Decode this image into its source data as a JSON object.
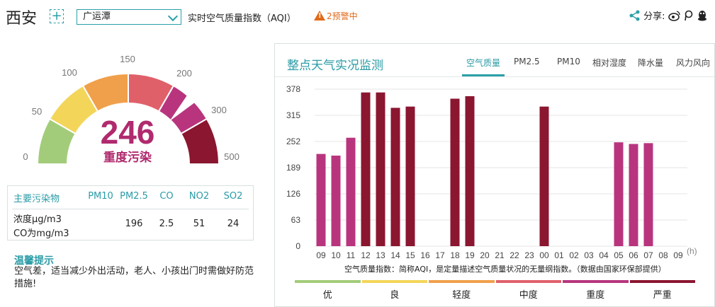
{
  "header": {
    "city": "西安",
    "add_symbol": "+",
    "station": "广运潭",
    "aqi_title": "实时空气质量指数（AQI）",
    "warning_count": "2",
    "warning_text": "预警中",
    "share_label": "分享:"
  },
  "gauge": {
    "aqi_value": "246",
    "level": "重度污染",
    "aqi_numeric": 246,
    "max": 500,
    "ticks": [
      "0",
      "50",
      "100",
      "150",
      "200",
      "300",
      "500"
    ]
  },
  "pollutants": {
    "header_label": "主要污染物",
    "columns": [
      "PM10",
      "PM2.5",
      "CO",
      "NO2",
      "SO2"
    ],
    "row_label_line1": "浓度μg/m3",
    "row_label_line2": "CO为mg/m3",
    "values": [
      "",
      "196",
      "2.5",
      "51",
      "24"
    ]
  },
  "tip": {
    "title": "温馨提示",
    "text": "空气差，适当减少外出活动，老人、小孩出门时需做好防范措施!"
  },
  "panel": {
    "title": "整点天气实况监测",
    "tabs": [
      "空气质量",
      "PM2.5",
      "PM10",
      "相对湿度",
      "降水量",
      "风力风向"
    ],
    "active_tab": 0,
    "note": "空气质量指数：简称AQI，是定量描述空气质量状况的无量纲指数。（数据由国家环保部提供）"
  },
  "chart_data": {
    "type": "bar",
    "xlabel": "(h)",
    "categories": [
      "09",
      "10",
      "11",
      "12",
      "13",
      "14",
      "15",
      "16",
      "17",
      "18",
      "19",
      "20",
      "21",
      "22",
      "23",
      "00",
      "01",
      "02",
      "03",
      "04",
      "05",
      "06",
      "07",
      "08",
      "09"
    ],
    "values": [
      222,
      218,
      261,
      370,
      370,
      333,
      336,
      null,
      null,
      355,
      361,
      null,
      null,
      null,
      null,
      336,
      null,
      null,
      null,
      null,
      250,
      246,
      248,
      null,
      null
    ],
    "y_ticks": [
      "0",
      "63",
      "126",
      "189",
      "252",
      "315",
      "378"
    ],
    "ylim": [
      0,
      378
    ],
    "grid": true,
    "colors": {
      "heavy": "#b8357e",
      "severe": "#8b1630"
    }
  },
  "legend": [
    {
      "label": "优",
      "color": "#a3cc7a"
    },
    {
      "label": "良",
      "color": "#f3d55a"
    },
    {
      "label": "轻度",
      "color": "#f0a04a"
    },
    {
      "label": "中度",
      "color": "#e0606a"
    },
    {
      "label": "重度",
      "color": "#b8357e"
    },
    {
      "label": "严重",
      "color": "#8b1630"
    }
  ]
}
